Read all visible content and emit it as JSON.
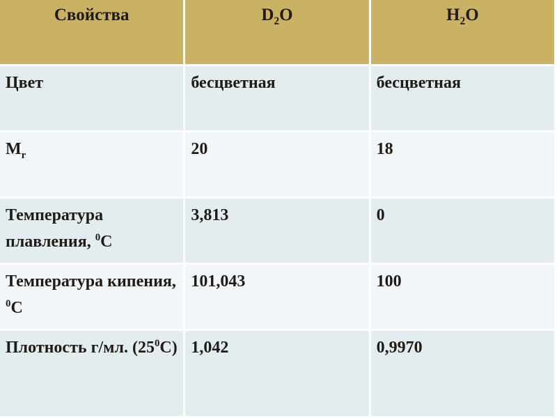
{
  "colors": {
    "header_bg": "#C9B264",
    "row_odd_bg": "#E3EDEF",
    "row_even_bg": "#F1F7F8",
    "divider": "#FFFFFF",
    "text": "#201B16"
  },
  "table": {
    "columns": [
      {
        "name": "properties",
        "segments": [
          {
            "t": "text",
            "v": "Свойства"
          }
        ]
      },
      {
        "name": "d2o",
        "segments": [
          {
            "t": "text",
            "v": "D"
          },
          {
            "t": "sub",
            "v": "2"
          },
          {
            "t": "text",
            "v": "O"
          }
        ]
      },
      {
        "name": "h2o",
        "segments": [
          {
            "t": "text",
            "v": "H"
          },
          {
            "t": "sub",
            "v": "2"
          },
          {
            "t": "text",
            "v": "O"
          }
        ]
      }
    ],
    "rows": [
      {
        "cells": [
          [
            {
              "t": "text",
              "v": "Цвет"
            }
          ],
          [
            {
              "t": "text",
              "v": "бесцветная"
            }
          ],
          [
            {
              "t": "text",
              "v": "бесцветная"
            }
          ]
        ]
      },
      {
        "cells": [
          [
            {
              "t": "text",
              "v": "M"
            },
            {
              "t": "sub",
              "v": "r"
            }
          ],
          [
            {
              "t": "text",
              "v": "20"
            }
          ],
          [
            {
              "t": "text",
              "v": "18"
            }
          ]
        ]
      },
      {
        "cells": [
          [
            {
              "t": "text",
              "v": "Температура плавления, "
            },
            {
              "t": "sup",
              "v": "0"
            },
            {
              "t": "text",
              "v": "С"
            }
          ],
          [
            {
              "t": "text",
              "v": "3,813"
            }
          ],
          [
            {
              "t": "text",
              "v": "0"
            }
          ]
        ]
      },
      {
        "cells": [
          [
            {
              "t": "text",
              "v": "Температура кипения,  "
            },
            {
              "t": "sup",
              "v": "0"
            },
            {
              "t": "text",
              "v": "С"
            }
          ],
          [
            {
              "t": "text",
              "v": "101,043"
            }
          ],
          [
            {
              "t": "text",
              "v": "100"
            }
          ]
        ]
      },
      {
        "cells": [
          [
            {
              "t": "text",
              "v": "Плотность г/мл. (25"
            },
            {
              "t": "sup",
              "v": "0"
            },
            {
              "t": "text",
              "v": "С)"
            }
          ],
          [
            {
              "t": "text",
              "v": "1,042"
            }
          ],
          [
            {
              "t": "text",
              "v": "0,9970"
            }
          ]
        ]
      }
    ]
  }
}
